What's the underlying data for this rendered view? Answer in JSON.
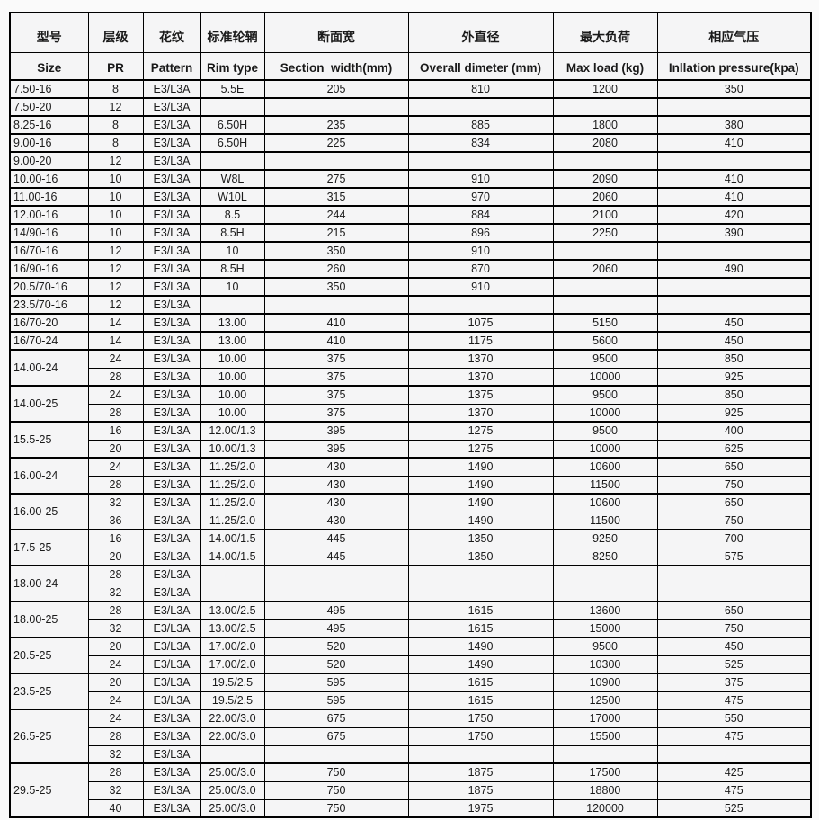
{
  "page": {
    "background": "#fafafa",
    "cell_background": "#f5f5f6",
    "border_color": "#000000",
    "text_color": "#1a1a1a"
  },
  "header": {
    "row_zh": [
      "型号",
      "层级",
      "花纹",
      "标准轮辋",
      "断面宽",
      "外直径",
      "最大负荷",
      "相应气压"
    ],
    "row_en": [
      "Size",
      "PR",
      "Pattern",
      "Rim type",
      "Section  width(mm)",
      "Overall dimeter (mm)",
      "Max load (kg)",
      "Inllation pressure(kpa)"
    ]
  },
  "chart_data": {
    "type": "table",
    "title": "Tire specification table",
    "columns_zh": [
      "型号",
      "层级",
      "花纹",
      "标准轮辋",
      "断面宽",
      "外直径",
      "最大负荷",
      "相应气压"
    ],
    "columns_en": [
      "Size",
      "PR",
      "Pattern",
      "Rim type",
      "Section  width(mm)",
      "Overall dimeter (mm)",
      "Max load (kg)",
      "Inllation pressure(kpa)"
    ],
    "groups": [
      {
        "size": "7.50-16",
        "rows": [
          [
            "8",
            "E3/L3A",
            "5.5E",
            "205",
            "810",
            "1200",
            "350"
          ]
        ]
      },
      {
        "size": "7.50-20",
        "rows": [
          [
            "12",
            "E3/L3A",
            "",
            "",
            "",
            "",
            ""
          ]
        ]
      },
      {
        "size": "8.25-16",
        "rows": [
          [
            "8",
            "E3/L3A",
            "6.50H",
            "235",
            "885",
            "1800",
            "380"
          ]
        ]
      },
      {
        "size": "9.00-16",
        "rows": [
          [
            "8",
            "E3/L3A",
            "6.50H",
            "225",
            "834",
            "2080",
            "410"
          ]
        ]
      },
      {
        "size": "9.00-20",
        "rows": [
          [
            "12",
            "E3/L3A",
            "",
            "",
            "",
            "",
            ""
          ]
        ]
      },
      {
        "size": "10.00-16",
        "rows": [
          [
            "10",
            "E3/L3A",
            "W8L",
            "275",
            "910",
            "2090",
            "410"
          ]
        ]
      },
      {
        "size": "11.00-16",
        "rows": [
          [
            "10",
            "E3/L3A",
            "W10L",
            "315",
            "970",
            "2060",
            "410"
          ]
        ]
      },
      {
        "size": "12.00-16",
        "rows": [
          [
            "10",
            "E3/L3A",
            "8.5",
            "244",
            "884",
            "2100",
            "420"
          ]
        ]
      },
      {
        "size": "14/90-16",
        "rows": [
          [
            "10",
            "E3/L3A",
            "8.5H",
            "215",
            "896",
            "2250",
            "390"
          ]
        ]
      },
      {
        "size": "16/70-16",
        "rows": [
          [
            "12",
            "E3/L3A",
            "10",
            "350",
            "910",
            "",
            ""
          ]
        ]
      },
      {
        "size": "16/90-16",
        "rows": [
          [
            "12",
            "E3/L3A",
            "8.5H",
            "260",
            "870",
            "2060",
            "490"
          ]
        ]
      },
      {
        "size": "20.5/70-16",
        "rows": [
          [
            "12",
            "E3/L3A",
            "10",
            "350",
            "910",
            "",
            ""
          ]
        ]
      },
      {
        "size": "23.5/70-16",
        "rows": [
          [
            "12",
            "E3/L3A",
            "",
            "",
            "",
            "",
            ""
          ]
        ]
      },
      {
        "size": "16/70-20",
        "rows": [
          [
            "14",
            "E3/L3A",
            "13.00",
            "410",
            "1075",
            "5150",
            "450"
          ]
        ]
      },
      {
        "size": "16/70-24",
        "rows": [
          [
            "14",
            "E3/L3A",
            "13.00",
            "410",
            "1175",
            "5600",
            "450"
          ]
        ]
      },
      {
        "size": "14.00-24",
        "rows": [
          [
            "24",
            "E3/L3A",
            "10.00",
            "375",
            "1370",
            "9500",
            "850"
          ],
          [
            "28",
            "E3/L3A",
            "10.00",
            "375",
            "1370",
            "10000",
            "925"
          ]
        ]
      },
      {
        "size": "14.00-25",
        "rows": [
          [
            "24",
            "E3/L3A",
            "10.00",
            "375",
            "1375",
            "9500",
            "850"
          ],
          [
            "28",
            "E3/L3A",
            "10.00",
            "375",
            "1370",
            "10000",
            "925"
          ]
        ]
      },
      {
        "size": "15.5-25",
        "rows": [
          [
            "16",
            "E3/L3A",
            "12.00/1.3",
            "395",
            "1275",
            "9500",
            "400"
          ],
          [
            "20",
            "E3/L3A",
            "10.00/1.3",
            "395",
            "1275",
            "10000",
            "625"
          ]
        ]
      },
      {
        "size": "16.00-24",
        "rows": [
          [
            "24",
            "E3/L3A",
            "11.25/2.0",
            "430",
            "1490",
            "10600",
            "650"
          ],
          [
            "28",
            "E3/L3A",
            "11.25/2.0",
            "430",
            "1490",
            "11500",
            "750"
          ]
        ]
      },
      {
        "size": "16.00-25",
        "rows": [
          [
            "32",
            "E3/L3A",
            "11.25/2.0",
            "430",
            "1490",
            "10600",
            "650"
          ],
          [
            "36",
            "E3/L3A",
            "11.25/2.0",
            "430",
            "1490",
            "11500",
            "750"
          ]
        ]
      },
      {
        "size": "17.5-25",
        "rows": [
          [
            "16",
            "E3/L3A",
            "14.00/1.5",
            "445",
            "1350",
            "9250",
            "700"
          ],
          [
            "20",
            "E3/L3A",
            "14.00/1.5",
            "445",
            "1350",
            "8250",
            "575"
          ]
        ]
      },
      {
        "size": "18.00-24",
        "rows": [
          [
            "28",
            "E3/L3A",
            "",
            "",
            "",
            "",
            ""
          ],
          [
            "32",
            "E3/L3A",
            "",
            "",
            "",
            "",
            ""
          ]
        ]
      },
      {
        "size": "18.00-25",
        "rows": [
          [
            "28",
            "E3/L3A",
            "13.00/2.5",
            "495",
            "1615",
            "13600",
            "650"
          ],
          [
            "32",
            "E3/L3A",
            "13.00/2.5",
            "495",
            "1615",
            "15000",
            "750"
          ]
        ]
      },
      {
        "size": "20.5-25",
        "rows": [
          [
            "20",
            "E3/L3A",
            "17.00/2.0",
            "520",
            "1490",
            "9500",
            "450"
          ],
          [
            "24",
            "E3/L3A",
            "17.00/2.0",
            "520",
            "1490",
            "10300",
            "525"
          ]
        ]
      },
      {
        "size": "23.5-25",
        "rows": [
          [
            "20",
            "E3/L3A",
            "19.5/2.5",
            "595",
            "1615",
            "10900",
            "375"
          ],
          [
            "24",
            "E3/L3A",
            "19.5/2.5",
            "595",
            "1615",
            "12500",
            "475"
          ]
        ]
      },
      {
        "size": "26.5-25",
        "rows": [
          [
            "24",
            "E3/L3A",
            "22.00/3.0",
            "675",
            "1750",
            "17000",
            "550"
          ],
          [
            "28",
            "E3/L3A",
            "22.00/3.0",
            "675",
            "1750",
            "15500",
            "475"
          ],
          [
            "32",
            "E3/L3A",
            "",
            "",
            "",
            "",
            ""
          ]
        ]
      },
      {
        "size": "29.5-25",
        "rows": [
          [
            "28",
            "E3/L3A",
            "25.00/3.0",
            "750",
            "1875",
            "17500",
            "425"
          ],
          [
            "32",
            "E3/L3A",
            "25.00/3.0",
            "750",
            "1875",
            "18800",
            "475"
          ],
          [
            "40",
            "E3/L3A",
            "25.00/3.0",
            "750",
            "1975",
            "120000",
            "525"
          ]
        ]
      }
    ]
  }
}
